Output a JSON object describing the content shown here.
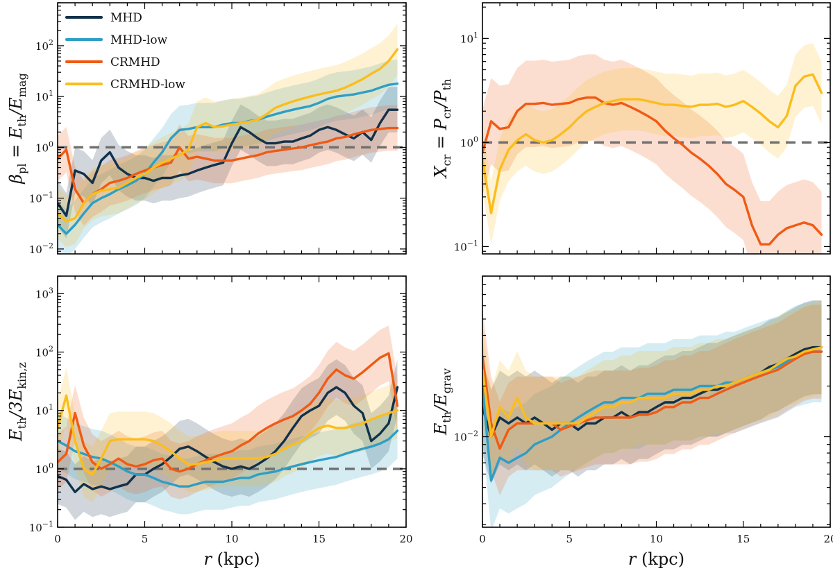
{
  "figure_title": "",
  "colors": {
    "MHD": "#12314a",
    "MHD-low": "#2e9ec5",
    "CRMHD": "#f05a14",
    "CRMHD-low": "#fbbd1c",
    "reference": "#707070"
  },
  "legend": {
    "location": "upper-left",
    "entries": [
      "MHD",
      "MHD-low",
      "CRMHD",
      "CRMHD-low"
    ]
  },
  "chart_data": [
    {
      "id": "beta",
      "type": "line",
      "title": "",
      "xlabel": "r (kpc)",
      "ylabel": "β_pl = E_th / E_mag",
      "ylabel_parts": {
        "pre": "β",
        "sub1": "pl",
        "mid": " = E",
        "sub2": "th",
        "mid2": "/E",
        "sub3": "mag"
      },
      "xscale": "linear",
      "yscale": "log",
      "xlim": [
        0,
        20
      ],
      "ylim": [
        0.008,
        700
      ],
      "xticks": [
        0,
        5,
        10,
        15,
        20
      ],
      "xtick_labels": [
        "0",
        "5",
        "10",
        "15",
        "20"
      ],
      "show_xtick_labels": false,
      "yticks": [
        0.01,
        0.1,
        1,
        10,
        100
      ],
      "ytick_labels": [
        {
          "b": "10",
          "e": "−2"
        },
        {
          "b": "10",
          "e": "−1"
        },
        {
          "b": "10",
          "e": "0"
        },
        {
          "b": "10",
          "e": "1"
        },
        {
          "b": "10",
          "e": "2"
        }
      ],
      "reference_line": 1,
      "x": [
        0,
        0.5,
        1,
        1.5,
        2,
        2.5,
        3,
        3.5,
        4,
        4.5,
        5,
        5.5,
        6,
        6.5,
        7,
        7.5,
        8,
        8.5,
        9,
        9.5,
        10,
        10.5,
        11,
        11.5,
        12,
        12.5,
        13,
        13.5,
        14,
        14.5,
        15,
        15.5,
        16,
        16.5,
        17,
        17.5,
        18,
        18.5,
        19,
        19.5
      ],
      "series": [
        {
          "name": "MHD",
          "values": [
            0.08,
            0.045,
            0.35,
            0.3,
            0.2,
            0.55,
            0.8,
            0.4,
            0.3,
            0.25,
            0.25,
            0.22,
            0.25,
            0.25,
            0.28,
            0.3,
            0.35,
            0.4,
            0.45,
            0.5,
            1.2,
            2.5,
            2.0,
            1.5,
            1.2,
            1.2,
            1.3,
            1.3,
            1.5,
            1.7,
            2.2,
            2.5,
            2.2,
            1.8,
            1.5,
            2.0,
            1.4,
            3.0,
            5.5,
            5.5
          ],
          "band": 2.8
        },
        {
          "name": "MHD-low",
          "values": [
            0.03,
            0.02,
            0.03,
            0.05,
            0.08,
            0.1,
            0.12,
            0.15,
            0.18,
            0.22,
            0.3,
            0.5,
            0.8,
            1.5,
            2.2,
            2.3,
            2.5,
            2.5,
            2.5,
            2.8,
            3.0,
            3.0,
            3.3,
            3.5,
            4.0,
            4.5,
            5.0,
            5.5,
            6.0,
            6.5,
            7.5,
            9.0,
            10.0,
            10.5,
            11.0,
            12.0,
            13.0,
            15.0,
            17.0,
            18.0
          ],
          "band": 3.0
        },
        {
          "name": "CRMHD",
          "values": [
            0.6,
            0.9,
            0.15,
            0.08,
            0.12,
            0.15,
            0.2,
            0.22,
            0.25,
            0.3,
            0.35,
            0.4,
            0.45,
            0.5,
            1.0,
            0.6,
            0.65,
            0.6,
            0.55,
            0.55,
            0.55,
            0.6,
            0.65,
            0.7,
            0.8,
            0.85,
            0.9,
            0.95,
            1.0,
            1.1,
            1.2,
            1.3,
            1.5,
            1.6,
            1.8,
            2.0,
            2.2,
            2.3,
            2.4,
            2.4
          ],
          "band": 2.8
        },
        {
          "name": "CRMHD-low",
          "values": [
            0.05,
            0.035,
            0.04,
            0.08,
            0.12,
            0.14,
            0.15,
            0.16,
            0.2,
            0.25,
            0.3,
            0.4,
            0.5,
            0.6,
            0.7,
            0.9,
            2.5,
            3.0,
            2.5,
            2.6,
            2.8,
            3.0,
            3.2,
            3.5,
            4.5,
            6.0,
            7.0,
            8.0,
            9.0,
            10.0,
            11.0,
            12.0,
            13.0,
            15.0,
            18.0,
            22.0,
            28.0,
            35.0,
            50.0,
            85.0
          ],
          "band": 3.2
        }
      ]
    },
    {
      "id": "xcr",
      "type": "line",
      "title": "",
      "xlabel": "r (kpc)",
      "ylabel": "X_cr = P_cr / P_th",
      "ylabel_parts": {
        "pre": "X",
        "sub1": "cr",
        "mid": " = P",
        "sub2": "cr",
        "mid2": "/P",
        "sub3": "th"
      },
      "xscale": "linear",
      "yscale": "log",
      "xlim": [
        0,
        20
      ],
      "ylim": [
        0.085,
        22
      ],
      "xticks": [
        0,
        5,
        10,
        15,
        20
      ],
      "xtick_labels": [
        "0",
        "5",
        "10",
        "15",
        "20"
      ],
      "show_xtick_labels": false,
      "yticks": [
        0.1,
        1,
        10
      ],
      "ytick_labels": [
        {
          "b": "10",
          "e": "−1"
        },
        {
          "b": "10",
          "e": "0"
        },
        {
          "b": "10",
          "e": "1"
        }
      ],
      "reference_line": 1,
      "x": [
        0,
        0.5,
        1,
        1.5,
        2,
        2.5,
        3,
        3.5,
        4,
        4.5,
        5,
        5.5,
        6,
        6.5,
        7,
        7.5,
        8,
        8.5,
        9,
        9.5,
        10,
        10.5,
        11,
        11.5,
        12,
        12.5,
        13,
        13.5,
        14,
        14.5,
        15,
        15.5,
        16,
        16.5,
        17,
        17.5,
        18,
        18.5,
        19,
        19.5
      ],
      "series": [
        {
          "name": "CRMHD",
          "values": [
            0.8,
            1.6,
            1.35,
            1.4,
            2.0,
            2.35,
            2.35,
            2.4,
            2.3,
            2.35,
            2.4,
            2.6,
            2.7,
            2.7,
            2.4,
            2.3,
            2.4,
            2.2,
            2.0,
            1.8,
            1.6,
            1.3,
            1.1,
            0.95,
            0.8,
            0.7,
            0.6,
            0.5,
            0.4,
            0.35,
            0.3,
            0.16,
            0.105,
            0.105,
            0.13,
            0.15,
            0.16,
            0.17,
            0.16,
            0.13
          ],
          "band": 2.6
        },
        {
          "name": "CRMHD-low",
          "values": [
            0.7,
            0.21,
            0.55,
            0.85,
            1.05,
            1.2,
            1.05,
            1.0,
            1.05,
            1.2,
            1.4,
            1.7,
            2.0,
            2.2,
            2.4,
            2.5,
            2.6,
            2.6,
            2.6,
            2.5,
            2.4,
            2.3,
            2.3,
            2.25,
            2.2,
            2.3,
            2.3,
            2.35,
            2.2,
            2.3,
            2.5,
            2.2,
            1.9,
            1.6,
            1.4,
            1.8,
            3.5,
            4.3,
            4.5,
            3.0
          ],
          "band": 2.0
        }
      ]
    },
    {
      "id": "ekin",
      "type": "line",
      "title": "",
      "xlabel": "r (kpc)",
      "ylabel": "E_th / 3E_kin,z",
      "ylabel_parts": {
        "pre": "E",
        "sub1": "th",
        "mid": "/3E",
        "sub2": "kin,z",
        "mid2": "",
        "sub3": ""
      },
      "xscale": "linear",
      "yscale": "log",
      "xlim": [
        0,
        20
      ],
      "ylim": [
        0.1,
        2000
      ],
      "xticks": [
        0,
        5,
        10,
        15,
        20
      ],
      "xtick_labels": [
        "0",
        "5",
        "10",
        "15",
        "20"
      ],
      "show_xtick_labels": true,
      "yticks": [
        0.1,
        1,
        10,
        100,
        1000
      ],
      "ytick_labels": [
        {
          "b": "10",
          "e": "−1"
        },
        {
          "b": "10",
          "e": "0"
        },
        {
          "b": "10",
          "e": "1"
        },
        {
          "b": "10",
          "e": "2"
        },
        {
          "b": "10",
          "e": "3"
        }
      ],
      "reference_line": 1,
      "x": [
        0,
        0.5,
        1,
        1.5,
        2,
        2.5,
        3,
        3.5,
        4,
        4.5,
        5,
        5.5,
        6,
        6.5,
        7,
        7.5,
        8,
        8.5,
        9,
        9.5,
        10,
        10.5,
        11,
        11.5,
        12,
        12.5,
        13,
        13.5,
        14,
        14.5,
        15,
        15.5,
        16,
        16.5,
        17,
        17.5,
        18,
        18.5,
        19,
        19.5
      ],
      "series": [
        {
          "name": "MHD",
          "values": [
            0.75,
            0.65,
            0.4,
            0.55,
            0.45,
            0.5,
            0.45,
            0.5,
            0.55,
            0.8,
            0.8,
            1.0,
            1.2,
            1.6,
            2.2,
            2.4,
            2.0,
            1.6,
            1.3,
            1.1,
            1.0,
            1.1,
            1.0,
            1.2,
            1.5,
            2.0,
            3.0,
            5.0,
            8.0,
            10.0,
            12.0,
            20.0,
            25.0,
            20.0,
            12.0,
            9.0,
            3.0,
            4.0,
            6.0,
            25.0
          ],
          "band": 3.0
        },
        {
          "name": "MHD-low",
          "values": [
            3.0,
            2.5,
            2.0,
            1.8,
            1.6,
            1.5,
            1.3,
            1.1,
            0.9,
            0.8,
            0.8,
            0.7,
            0.6,
            0.55,
            0.5,
            0.5,
            0.55,
            0.6,
            0.6,
            0.6,
            0.65,
            0.7,
            0.7,
            0.8,
            0.85,
            0.9,
            1.0,
            1.1,
            1.2,
            1.3,
            1.4,
            1.5,
            1.6,
            1.8,
            2.0,
            2.2,
            2.4,
            2.7,
            3.2,
            4.5
          ],
          "band": 3.0
        },
        {
          "name": "CRMHD",
          "values": [
            1.3,
            1.8,
            9.0,
            2.5,
            1.3,
            1.0,
            1.2,
            1.5,
            1.2,
            1.1,
            1.2,
            1.4,
            1.5,
            1.0,
            0.9,
            1.0,
            1.2,
            1.4,
            1.6,
            1.8,
            2.0,
            2.5,
            3.0,
            4.0,
            5.0,
            6.0,
            7.0,
            8.0,
            10.0,
            13.0,
            20.0,
            35.0,
            50.0,
            40.0,
            35.0,
            45.0,
            60.0,
            80.0,
            95.0,
            12.0
          ],
          "band": 3.0
        },
        {
          "name": "CRMHD-low",
          "values": [
            5.0,
            18.0,
            3.0,
            1.0,
            0.8,
            1.5,
            3.0,
            3.2,
            3.2,
            3.2,
            3.2,
            3.0,
            2.5,
            2.0,
            1.5,
            1.2,
            1.2,
            1.3,
            1.4,
            1.5,
            1.5,
            1.5,
            1.5,
            1.5,
            1.6,
            1.8,
            2.2,
            2.6,
            3.0,
            4.0,
            5.0,
            5.5,
            5.0,
            5.0,
            5.5,
            6.0,
            7.0,
            8.0,
            9.0,
            10.0
          ],
          "band": 3.0
        }
      ]
    },
    {
      "id": "egrav",
      "type": "line",
      "title": "",
      "xlabel": "r (kpc)",
      "ylabel": "E_th / E_grav",
      "ylabel_parts": {
        "pre": "E",
        "sub1": "th",
        "mid": "/E",
        "sub2": "grav",
        "mid2": "",
        "sub3": ""
      },
      "xscale": "linear",
      "yscale": "log",
      "xlim": [
        0,
        20
      ],
      "ylim": [
        0.0029,
        0.09
      ],
      "xticks": [
        0,
        5,
        10,
        15,
        20
      ],
      "xtick_labels": [
        "0",
        "5",
        "10",
        "15",
        "20"
      ],
      "show_xtick_labels": true,
      "yticks": [
        0.01
      ],
      "ytick_labels": [
        {
          "b": "10",
          "e": "−2"
        }
      ],
      "reference_line": null,
      "x": [
        0,
        0.5,
        1,
        1.5,
        2,
        2.5,
        3,
        3.5,
        4,
        4.5,
        5,
        5.5,
        6,
        6.5,
        7,
        7.5,
        8,
        8.5,
        9,
        9.5,
        10,
        10.5,
        11,
        11.5,
        12,
        12.5,
        13,
        13.5,
        14,
        14.5,
        15,
        15.5,
        16,
        16.5,
        17,
        17.5,
        18,
        18.5,
        19,
        19.5
      ],
      "series": [
        {
          "name": "MHD",
          "values": [
            0.015,
            0.01,
            0.013,
            0.012,
            0.013,
            0.012,
            0.013,
            0.012,
            0.011,
            0.012,
            0.012,
            0.011,
            0.012,
            0.012,
            0.013,
            0.013,
            0.014,
            0.013,
            0.014,
            0.014,
            0.015,
            0.016,
            0.016,
            0.017,
            0.017,
            0.018,
            0.019,
            0.019,
            0.02,
            0.021,
            0.022,
            0.023,
            0.024,
            0.026,
            0.027,
            0.029,
            0.031,
            0.033,
            0.034,
            0.034
          ],
          "band": 1.9
        },
        {
          "name": "MHD-low",
          "values": [
            0.02,
            0.0055,
            0.0075,
            0.007,
            0.0075,
            0.008,
            0.009,
            0.0095,
            0.01,
            0.011,
            0.012,
            0.013,
            0.014,
            0.015,
            0.016,
            0.016,
            0.017,
            0.017,
            0.017,
            0.018,
            0.018,
            0.018,
            0.019,
            0.019,
            0.019,
            0.02,
            0.02,
            0.02,
            0.021,
            0.021,
            0.022,
            0.023,
            0.024,
            0.025,
            0.026,
            0.028,
            0.03,
            0.031,
            0.032,
            0.032
          ],
          "band": 2.0
        },
        {
          "name": "CRMHD",
          "values": [
            0.03,
            0.012,
            0.0085,
            0.011,
            0.012,
            0.012,
            0.012,
            0.012,
            0.012,
            0.011,
            0.0115,
            0.012,
            0.0125,
            0.013,
            0.013,
            0.013,
            0.013,
            0.013,
            0.0135,
            0.0135,
            0.014,
            0.015,
            0.015,
            0.016,
            0.016,
            0.017,
            0.017,
            0.018,
            0.019,
            0.02,
            0.021,
            0.022,
            0.023,
            0.024,
            0.025,
            0.027,
            0.029,
            0.031,
            0.032,
            0.032
          ],
          "band": 1.9
        },
        {
          "name": "CRMHD-low",
          "values": [
            0.025,
            0.01,
            0.015,
            0.013,
            0.017,
            0.013,
            0.012,
            0.012,
            0.012,
            0.012,
            0.012,
            0.012,
            0.013,
            0.014,
            0.015,
            0.015,
            0.016,
            0.016,
            0.017,
            0.017,
            0.017,
            0.017,
            0.018,
            0.018,
            0.018,
            0.019,
            0.019,
            0.02,
            0.02,
            0.021,
            0.022,
            0.023,
            0.024,
            0.025,
            0.027,
            0.029,
            0.03,
            0.032,
            0.033,
            0.034
          ],
          "band": 1.9
        }
      ]
    }
  ]
}
